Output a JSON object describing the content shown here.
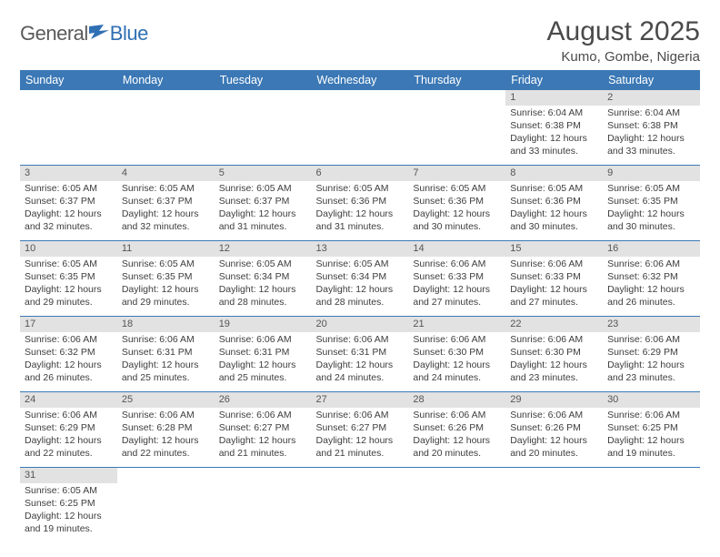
{
  "logo": {
    "part1": "General",
    "part2": "Blue",
    "color_text": "#5a5a5a",
    "color_blue": "#2f6fb3"
  },
  "header": {
    "title": "August 2025",
    "location": "Kumo, Gombe, Nigeria"
  },
  "theme": {
    "header_bg": "#3b78b5",
    "header_fg": "#ffffff",
    "row_divider": "#3b78b5",
    "daynum_bg": "#e2e2e2",
    "text": "#3d3d3d"
  },
  "daysOfWeek": [
    "Sunday",
    "Monday",
    "Tuesday",
    "Wednesday",
    "Thursday",
    "Friday",
    "Saturday"
  ],
  "weeks": [
    [
      null,
      null,
      null,
      null,
      null,
      {
        "n": "1",
        "sr": "Sunrise: 6:04 AM",
        "ss": "Sunset: 6:38 PM",
        "dl1": "Daylight: 12 hours",
        "dl2": "and 33 minutes."
      },
      {
        "n": "2",
        "sr": "Sunrise: 6:04 AM",
        "ss": "Sunset: 6:38 PM",
        "dl1": "Daylight: 12 hours",
        "dl2": "and 33 minutes."
      }
    ],
    [
      {
        "n": "3",
        "sr": "Sunrise: 6:05 AM",
        "ss": "Sunset: 6:37 PM",
        "dl1": "Daylight: 12 hours",
        "dl2": "and 32 minutes."
      },
      {
        "n": "4",
        "sr": "Sunrise: 6:05 AM",
        "ss": "Sunset: 6:37 PM",
        "dl1": "Daylight: 12 hours",
        "dl2": "and 32 minutes."
      },
      {
        "n": "5",
        "sr": "Sunrise: 6:05 AM",
        "ss": "Sunset: 6:37 PM",
        "dl1": "Daylight: 12 hours",
        "dl2": "and 31 minutes."
      },
      {
        "n": "6",
        "sr": "Sunrise: 6:05 AM",
        "ss": "Sunset: 6:36 PM",
        "dl1": "Daylight: 12 hours",
        "dl2": "and 31 minutes."
      },
      {
        "n": "7",
        "sr": "Sunrise: 6:05 AM",
        "ss": "Sunset: 6:36 PM",
        "dl1": "Daylight: 12 hours",
        "dl2": "and 30 minutes."
      },
      {
        "n": "8",
        "sr": "Sunrise: 6:05 AM",
        "ss": "Sunset: 6:36 PM",
        "dl1": "Daylight: 12 hours",
        "dl2": "and 30 minutes."
      },
      {
        "n": "9",
        "sr": "Sunrise: 6:05 AM",
        "ss": "Sunset: 6:35 PM",
        "dl1": "Daylight: 12 hours",
        "dl2": "and 30 minutes."
      }
    ],
    [
      {
        "n": "10",
        "sr": "Sunrise: 6:05 AM",
        "ss": "Sunset: 6:35 PM",
        "dl1": "Daylight: 12 hours",
        "dl2": "and 29 minutes."
      },
      {
        "n": "11",
        "sr": "Sunrise: 6:05 AM",
        "ss": "Sunset: 6:35 PM",
        "dl1": "Daylight: 12 hours",
        "dl2": "and 29 minutes."
      },
      {
        "n": "12",
        "sr": "Sunrise: 6:05 AM",
        "ss": "Sunset: 6:34 PM",
        "dl1": "Daylight: 12 hours",
        "dl2": "and 28 minutes."
      },
      {
        "n": "13",
        "sr": "Sunrise: 6:05 AM",
        "ss": "Sunset: 6:34 PM",
        "dl1": "Daylight: 12 hours",
        "dl2": "and 28 minutes."
      },
      {
        "n": "14",
        "sr": "Sunrise: 6:06 AM",
        "ss": "Sunset: 6:33 PM",
        "dl1": "Daylight: 12 hours",
        "dl2": "and 27 minutes."
      },
      {
        "n": "15",
        "sr": "Sunrise: 6:06 AM",
        "ss": "Sunset: 6:33 PM",
        "dl1": "Daylight: 12 hours",
        "dl2": "and 27 minutes."
      },
      {
        "n": "16",
        "sr": "Sunrise: 6:06 AM",
        "ss": "Sunset: 6:32 PM",
        "dl1": "Daylight: 12 hours",
        "dl2": "and 26 minutes."
      }
    ],
    [
      {
        "n": "17",
        "sr": "Sunrise: 6:06 AM",
        "ss": "Sunset: 6:32 PM",
        "dl1": "Daylight: 12 hours",
        "dl2": "and 26 minutes."
      },
      {
        "n": "18",
        "sr": "Sunrise: 6:06 AM",
        "ss": "Sunset: 6:31 PM",
        "dl1": "Daylight: 12 hours",
        "dl2": "and 25 minutes."
      },
      {
        "n": "19",
        "sr": "Sunrise: 6:06 AM",
        "ss": "Sunset: 6:31 PM",
        "dl1": "Daylight: 12 hours",
        "dl2": "and 25 minutes."
      },
      {
        "n": "20",
        "sr": "Sunrise: 6:06 AM",
        "ss": "Sunset: 6:31 PM",
        "dl1": "Daylight: 12 hours",
        "dl2": "and 24 minutes."
      },
      {
        "n": "21",
        "sr": "Sunrise: 6:06 AM",
        "ss": "Sunset: 6:30 PM",
        "dl1": "Daylight: 12 hours",
        "dl2": "and 24 minutes."
      },
      {
        "n": "22",
        "sr": "Sunrise: 6:06 AM",
        "ss": "Sunset: 6:30 PM",
        "dl1": "Daylight: 12 hours",
        "dl2": "and 23 minutes."
      },
      {
        "n": "23",
        "sr": "Sunrise: 6:06 AM",
        "ss": "Sunset: 6:29 PM",
        "dl1": "Daylight: 12 hours",
        "dl2": "and 23 minutes."
      }
    ],
    [
      {
        "n": "24",
        "sr": "Sunrise: 6:06 AM",
        "ss": "Sunset: 6:29 PM",
        "dl1": "Daylight: 12 hours",
        "dl2": "and 22 minutes."
      },
      {
        "n": "25",
        "sr": "Sunrise: 6:06 AM",
        "ss": "Sunset: 6:28 PM",
        "dl1": "Daylight: 12 hours",
        "dl2": "and 22 minutes."
      },
      {
        "n": "26",
        "sr": "Sunrise: 6:06 AM",
        "ss": "Sunset: 6:27 PM",
        "dl1": "Daylight: 12 hours",
        "dl2": "and 21 minutes."
      },
      {
        "n": "27",
        "sr": "Sunrise: 6:06 AM",
        "ss": "Sunset: 6:27 PM",
        "dl1": "Daylight: 12 hours",
        "dl2": "and 21 minutes."
      },
      {
        "n": "28",
        "sr": "Sunrise: 6:06 AM",
        "ss": "Sunset: 6:26 PM",
        "dl1": "Daylight: 12 hours",
        "dl2": "and 20 minutes."
      },
      {
        "n": "29",
        "sr": "Sunrise: 6:06 AM",
        "ss": "Sunset: 6:26 PM",
        "dl1": "Daylight: 12 hours",
        "dl2": "and 20 minutes."
      },
      {
        "n": "30",
        "sr": "Sunrise: 6:06 AM",
        "ss": "Sunset: 6:25 PM",
        "dl1": "Daylight: 12 hours",
        "dl2": "and 19 minutes."
      }
    ],
    [
      {
        "n": "31",
        "sr": "Sunrise: 6:05 AM",
        "ss": "Sunset: 6:25 PM",
        "dl1": "Daylight: 12 hours",
        "dl2": "and 19 minutes."
      },
      null,
      null,
      null,
      null,
      null,
      null
    ]
  ]
}
